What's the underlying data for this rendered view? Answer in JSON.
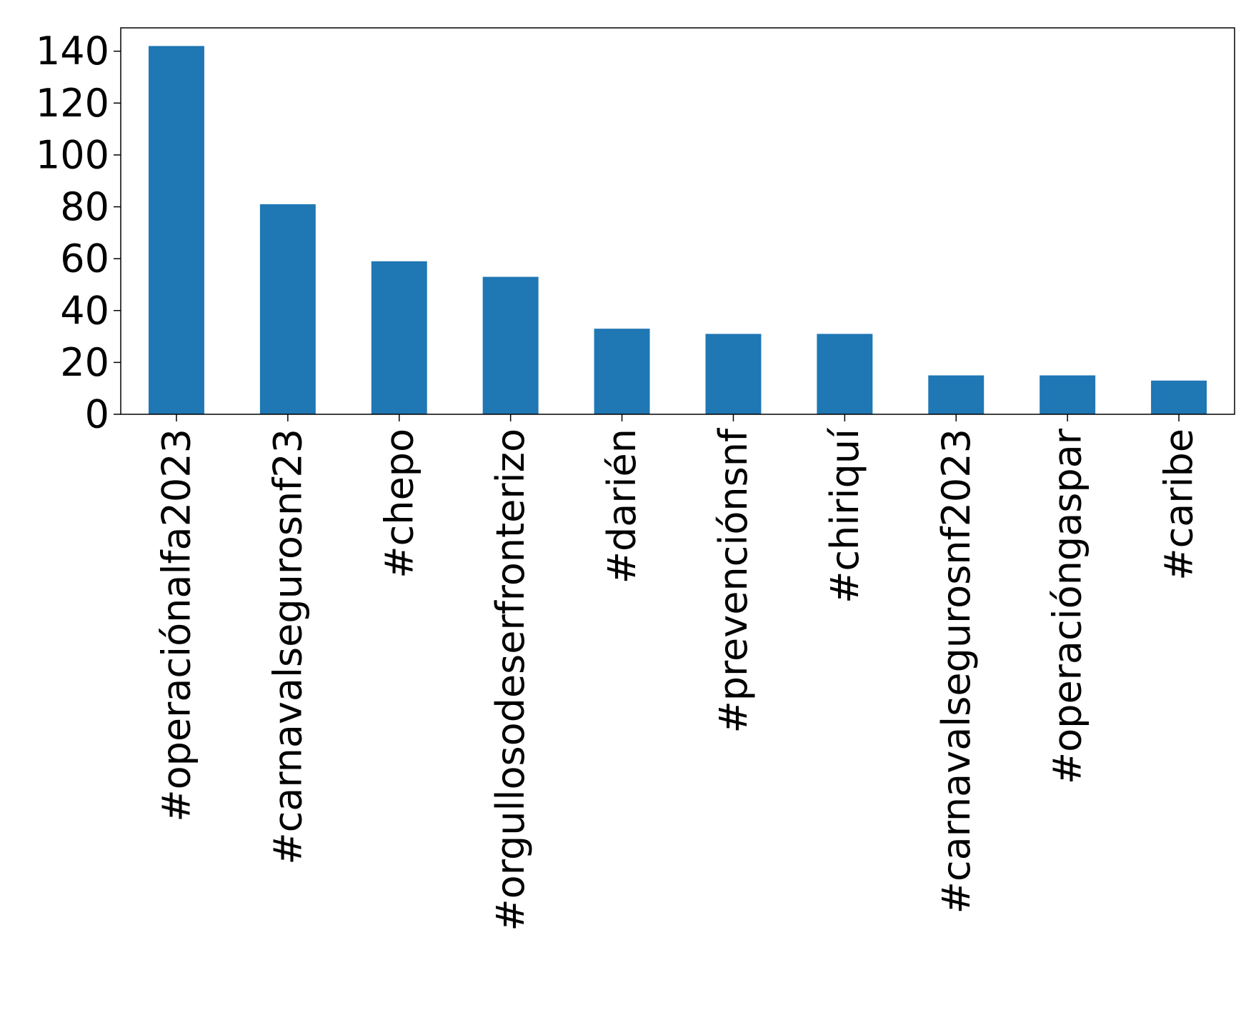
{
  "chart_data": {
    "type": "bar",
    "categories": [
      "#operaciónalfa2023",
      "#carnavalsegurosnf23",
      "#chepo",
      "#orgullosodeserfronterizo",
      "#darién",
      "#prevenciónsnf",
      "#chiriquí",
      "#carnavalsegurosnf2023",
      "#operacióngaspar",
      "#caribe"
    ],
    "values": [
      142,
      81,
      59,
      53,
      33,
      31,
      31,
      15,
      15,
      13
    ],
    "color": "#1f77b4",
    "ylim": [
      0,
      149
    ],
    "yticks": [
      0,
      20,
      40,
      60,
      80,
      100,
      120,
      140
    ],
    "grid": false
  }
}
